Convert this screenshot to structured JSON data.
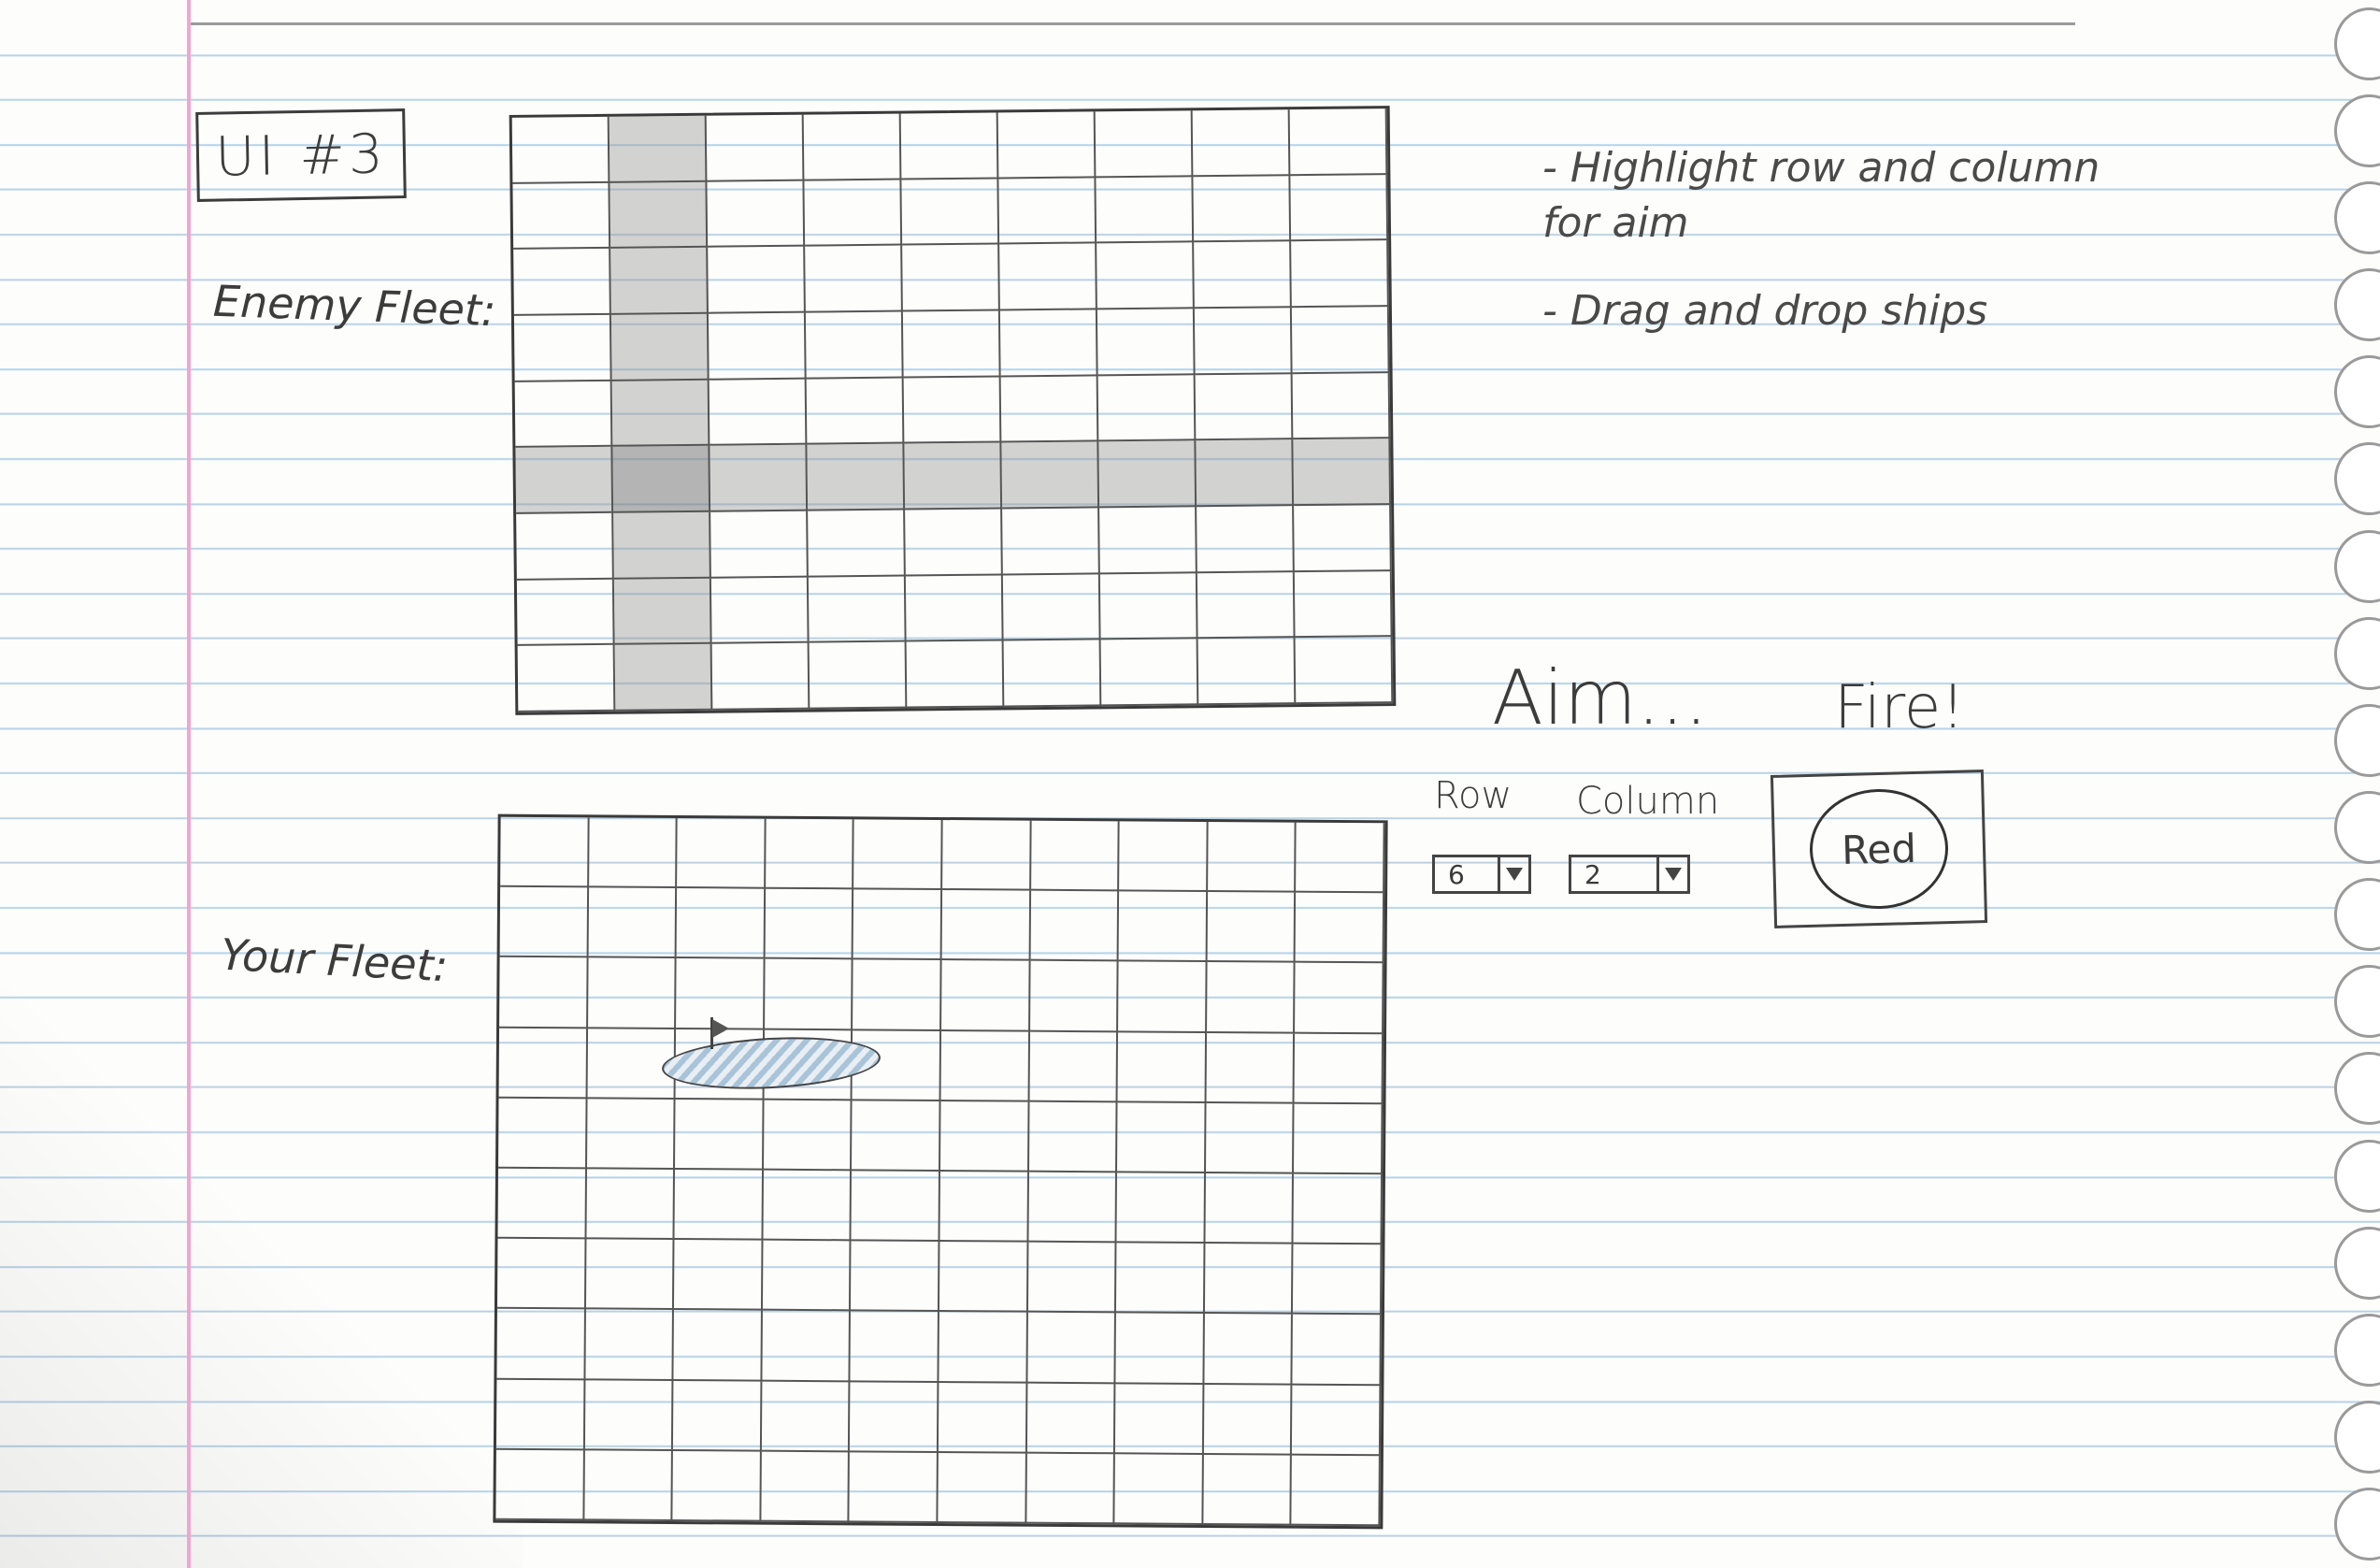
{
  "sketch_label": "UI #3",
  "enemy_fleet": {
    "label": "Enemy Fleet:",
    "columns": 9,
    "rows": 9,
    "highlight_row": 6,
    "highlight_column": 2
  },
  "your_fleet": {
    "label": "Your Fleet:",
    "columns": 10,
    "rows": 10
  },
  "notes": [
    "- Highlight row and column for aim",
    "- Drag and drop ships"
  ],
  "aim": {
    "title": "Aim...",
    "row_label": "Row",
    "column_label": "Column",
    "row_value": "6",
    "column_value": "2"
  },
  "fire": {
    "title": "Fire!",
    "button_label": "Red"
  },
  "colors": {
    "paper": "#fdfdfc",
    "rule_line": "#b8d2e6",
    "margin_line": "#f0a6cf",
    "highlight": "#999999",
    "ink": "#3c3c3c"
  }
}
